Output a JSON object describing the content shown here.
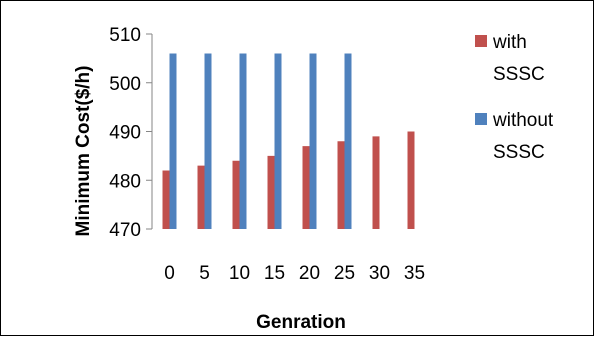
{
  "chart_data": {
    "type": "bar",
    "categories": [
      "0",
      "5",
      "10",
      "15",
      "20",
      "25",
      "30",
      "35"
    ],
    "series": [
      {
        "name": "with SSSC",
        "legend_lines": [
          "with",
          "SSSC"
        ],
        "color": "#C0504D",
        "values": [
          482,
          483,
          484,
          485,
          487,
          488,
          489,
          490
        ]
      },
      {
        "name": "without SSSC",
        "legend_lines": [
          "without",
          "SSSC"
        ],
        "color": "#4F81BD",
        "values": [
          506,
          506,
          506,
          506,
          506,
          506,
          null,
          null
        ]
      }
    ],
    "xlabel": "Genration",
    "ylabel": "Minimum Cost($/h)",
    "ylim": [
      470,
      510
    ],
    "yticks": [
      470,
      480,
      490,
      500,
      510
    ],
    "grid": false,
    "legend": "right"
  }
}
